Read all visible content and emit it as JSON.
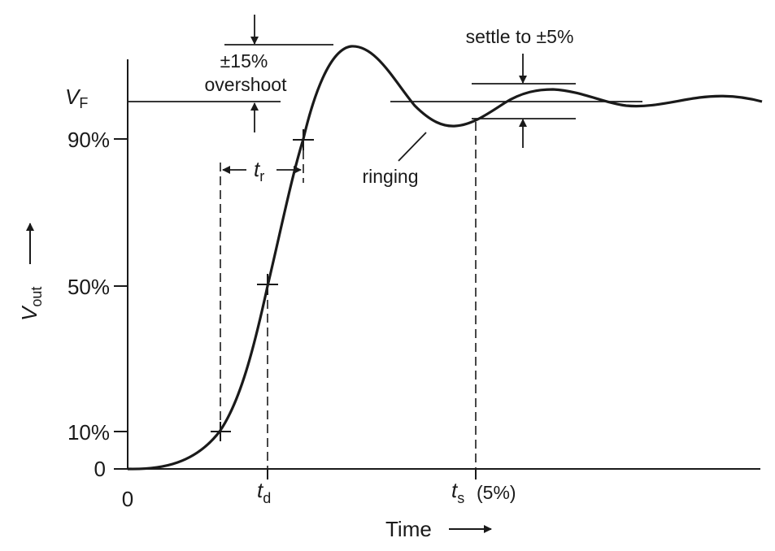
{
  "axes": {
    "y_label_main": "V",
    "y_label_sub": "out",
    "x_label": "Time",
    "y_ticks": [
      "0",
      "10%",
      "50%",
      "90%"
    ],
    "x_origin": "0",
    "vf_main": "V",
    "vf_sub": "F"
  },
  "markers": {
    "td_main": "t",
    "td_sub": "d",
    "tr_main": "t",
    "tr_sub": "r",
    "ts_main": "t",
    "ts_sub": "s",
    "ts_note": "(5%)"
  },
  "annotations": {
    "overshoot_line1": "±15%",
    "overshoot_line2": "overshoot",
    "settle": "settle to ±5%",
    "ringing": "ringing"
  }
}
